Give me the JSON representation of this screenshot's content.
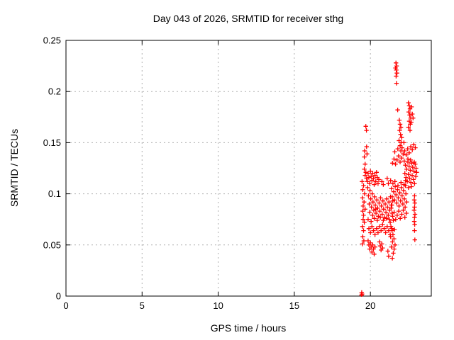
{
  "window": {
    "background": "#ffffff"
  },
  "chart_data": {
    "type": "scatter",
    "title": "Day 043 of 2026, SRMTID for receiver sthg",
    "xlabel": "GPS time / hours",
    "ylabel": "SRMTID / TECUs",
    "xlim": [
      0,
      24
    ],
    "ylim": [
      0,
      0.25
    ],
    "xticks": [
      0,
      5,
      10,
      15,
      20
    ],
    "xtick_labels": [
      "0",
      "5",
      "10",
      "15",
      "20"
    ],
    "yticks": [
      0,
      0.05,
      0.1,
      0.15,
      0.2,
      0.25
    ],
    "ytick_labels": [
      "0",
      "0.05",
      "0.1",
      "0.15",
      "0.2",
      "0.25"
    ],
    "grid": true,
    "legend": "none",
    "marker": "plus",
    "marker_color": "#ff0000",
    "grid_color": "#b0b0b0",
    "axis_color": "#000000",
    "series": [
      {
        "name": "SRMTID",
        "points": [
          [
            19.42,
            0.001
          ],
          [
            19.45,
            0.002
          ],
          [
            19.43,
            0.0035
          ],
          [
            19.7,
            0.166
          ],
          [
            19.74,
            0.162
          ],
          [
            19.75,
            0.146
          ],
          [
            19.62,
            0.142
          ],
          [
            19.78,
            0.139
          ],
          [
            19.6,
            0.136
          ],
          [
            19.65,
            0.129
          ],
          [
            19.45,
            0.112
          ],
          [
            19.55,
            0.108
          ],
          [
            19.5,
            0.104
          ],
          [
            19.62,
            0.1
          ],
          [
            19.48,
            0.096
          ],
          [
            19.58,
            0.092
          ],
          [
            19.52,
            0.088
          ],
          [
            19.65,
            0.085
          ],
          [
            19.5,
            0.083
          ],
          [
            19.55,
            0.079
          ],
          [
            19.52,
            0.075
          ],
          [
            19.6,
            0.072
          ],
          [
            19.48,
            0.068
          ],
          [
            19.55,
            0.064
          ],
          [
            19.5,
            0.058
          ],
          [
            19.57,
            0.054
          ],
          [
            19.47,
            0.051
          ],
          [
            19.6,
            0.124
          ],
          [
            19.7,
            0.121
          ],
          [
            19.65,
            0.118
          ],
          [
            19.75,
            0.115
          ],
          [
            19.8,
            0.112
          ],
          [
            19.85,
            0.12
          ],
          [
            19.9,
            0.116
          ],
          [
            19.95,
            0.11
          ],
          [
            20.0,
            0.122
          ],
          [
            20.05,
            0.117
          ],
          [
            20.1,
            0.113
          ],
          [
            20.15,
            0.12
          ],
          [
            20.2,
            0.115
          ],
          [
            20.25,
            0.109
          ],
          [
            20.3,
            0.118
          ],
          [
            20.35,
            0.112
          ],
          [
            20.4,
            0.121
          ],
          [
            20.45,
            0.116
          ],
          [
            20.5,
            0.11
          ],
          [
            20.55,
            0.114
          ],
          [
            20.75,
            0.112
          ],
          [
            20.85,
            0.109
          ],
          [
            21.1,
            0.115
          ],
          [
            21.18,
            0.11
          ],
          [
            19.82,
            0.106
          ],
          [
            19.87,
            0.098
          ],
          [
            19.92,
            0.09
          ],
          [
            19.97,
            0.103
          ],
          [
            20.02,
            0.095
          ],
          [
            20.07,
            0.087
          ],
          [
            20.12,
            0.1
          ],
          [
            20.17,
            0.092
          ],
          [
            20.22,
            0.084
          ],
          [
            20.27,
            0.097
          ],
          [
            20.32,
            0.089
          ],
          [
            20.37,
            0.081
          ],
          [
            20.42,
            0.094
          ],
          [
            20.47,
            0.086
          ],
          [
            20.52,
            0.078
          ],
          [
            20.57,
            0.091
          ],
          [
            20.62,
            0.083
          ],
          [
            20.67,
            0.096
          ],
          [
            20.72,
            0.088
          ],
          [
            20.77,
            0.08
          ],
          [
            20.82,
            0.093
          ],
          [
            20.87,
            0.085
          ],
          [
            20.92,
            0.077
          ],
          [
            20.97,
            0.09
          ],
          [
            21.02,
            0.082
          ],
          [
            21.07,
            0.095
          ],
          [
            21.12,
            0.087
          ],
          [
            21.17,
            0.079
          ],
          [
            21.22,
            0.092
          ],
          [
            21.27,
            0.084
          ],
          [
            21.32,
            0.097
          ],
          [
            21.37,
            0.089
          ],
          [
            21.42,
            0.081
          ],
          [
            21.47,
            0.093
          ],
          [
            19.85,
            0.075
          ],
          [
            20.05,
            0.073
          ],
          [
            20.25,
            0.076
          ],
          [
            20.45,
            0.074
          ],
          [
            20.65,
            0.077
          ],
          [
            20.85,
            0.074
          ],
          [
            21.05,
            0.076
          ],
          [
            21.25,
            0.075
          ],
          [
            19.95,
            0.082
          ],
          [
            20.15,
            0.079
          ],
          [
            20.35,
            0.085
          ],
          [
            19.9,
            0.066
          ],
          [
            20.0,
            0.062
          ],
          [
            20.1,
            0.068
          ],
          [
            20.2,
            0.064
          ],
          [
            20.3,
            0.06
          ],
          [
            20.4,
            0.066
          ],
          [
            20.5,
            0.062
          ],
          [
            20.6,
            0.068
          ],
          [
            20.7,
            0.064
          ],
          [
            20.8,
            0.07
          ],
          [
            20.9,
            0.066
          ],
          [
            21.0,
            0.062
          ],
          [
            21.1,
            0.068
          ],
          [
            21.2,
            0.064
          ],
          [
            21.3,
            0.06
          ],
          [
            21.4,
            0.066
          ],
          [
            19.85,
            0.054
          ],
          [
            19.9,
            0.05
          ],
          [
            19.95,
            0.046
          ],
          [
            20.0,
            0.052
          ],
          [
            20.05,
            0.048
          ],
          [
            20.1,
            0.043
          ],
          [
            20.15,
            0.05
          ],
          [
            20.2,
            0.046
          ],
          [
            20.25,
            0.041
          ],
          [
            20.3,
            0.048
          ],
          [
            20.6,
            0.053
          ],
          [
            20.65,
            0.049
          ],
          [
            20.7,
            0.045
          ],
          [
            20.75,
            0.051
          ],
          [
            20.8,
            0.047
          ],
          [
            21.15,
            0.044
          ],
          [
            21.2,
            0.039
          ],
          [
            21.3,
            0.072
          ],
          [
            21.35,
            0.068
          ],
          [
            21.42,
            0.064
          ],
          [
            21.48,
            0.06
          ],
          [
            21.55,
            0.056
          ],
          [
            21.62,
            0.05
          ],
          [
            21.33,
            0.058
          ],
          [
            21.58,
            0.065
          ],
          [
            21.45,
            0.053
          ],
          [
            21.38,
            0.048
          ],
          [
            21.5,
            0.042
          ],
          [
            21.44,
            0.037
          ],
          [
            21.56,
            0.046
          ],
          [
            21.68,
            0.228
          ],
          [
            21.72,
            0.225
          ],
          [
            21.65,
            0.223
          ],
          [
            21.7,
            0.221
          ],
          [
            21.74,
            0.218
          ],
          [
            21.69,
            0.215
          ],
          [
            21.71,
            0.208
          ],
          [
            21.79,
            0.182
          ],
          [
            21.9,
            0.172
          ],
          [
            21.95,
            0.168
          ],
          [
            22.0,
            0.165
          ],
          [
            21.92,
            0.162
          ],
          [
            21.98,
            0.158
          ],
          [
            22.05,
            0.155
          ],
          [
            21.88,
            0.152
          ],
          [
            22.02,
            0.15
          ],
          [
            21.95,
            0.147
          ],
          [
            22.08,
            0.145
          ],
          [
            22.5,
            0.189
          ],
          [
            22.55,
            0.186
          ],
          [
            22.6,
            0.183
          ],
          [
            22.52,
            0.18
          ],
          [
            22.58,
            0.177
          ],
          [
            22.65,
            0.174
          ],
          [
            22.55,
            0.171
          ],
          [
            22.62,
            0.168
          ],
          [
            22.5,
            0.165
          ],
          [
            22.6,
            0.162
          ],
          [
            22.7,
            0.185
          ],
          [
            22.75,
            0.178
          ],
          [
            22.68,
            0.17
          ],
          [
            22.8,
            0.174
          ],
          [
            21.45,
            0.13
          ],
          [
            21.55,
            0.134
          ],
          [
            21.65,
            0.129
          ],
          [
            21.75,
            0.133
          ],
          [
            21.85,
            0.137
          ],
          [
            21.95,
            0.131
          ],
          [
            22.05,
            0.135
          ],
          [
            22.15,
            0.139
          ],
          [
            22.25,
            0.142
          ],
          [
            22.35,
            0.138
          ],
          [
            22.45,
            0.144
          ],
          [
            22.55,
            0.14
          ],
          [
            22.65,
            0.146
          ],
          [
            22.75,
            0.143
          ],
          [
            22.85,
            0.148
          ],
          [
            22.95,
            0.145
          ],
          [
            21.6,
            0.141
          ],
          [
            21.8,
            0.144
          ],
          [
            22.0,
            0.142
          ],
          [
            22.2,
            0.15
          ],
          [
            21.33,
            0.113
          ],
          [
            21.38,
            0.105
          ],
          [
            21.43,
            0.097
          ],
          [
            21.48,
            0.11
          ],
          [
            21.53,
            0.102
          ],
          [
            21.58,
            0.094
          ],
          [
            21.63,
            0.107
          ],
          [
            21.68,
            0.099
          ],
          [
            21.73,
            0.091
          ],
          [
            21.78,
            0.104
          ],
          [
            21.83,
            0.096
          ],
          [
            21.88,
            0.088
          ],
          [
            21.93,
            0.101
          ],
          [
            21.98,
            0.093
          ],
          [
            22.03,
            0.106
          ],
          [
            22.08,
            0.098
          ],
          [
            22.13,
            0.09
          ],
          [
            22.18,
            0.103
          ],
          [
            22.23,
            0.095
          ],
          [
            22.28,
            0.087
          ],
          [
            22.33,
            0.1
          ],
          [
            22.38,
            0.092
          ],
          [
            21.36,
            0.086
          ],
          [
            21.46,
            0.078
          ],
          [
            21.56,
            0.082
          ],
          [
            21.66,
            0.075
          ],
          [
            21.76,
            0.079
          ],
          [
            21.86,
            0.083
          ],
          [
            21.96,
            0.076
          ],
          [
            22.06,
            0.08
          ],
          [
            22.16,
            0.084
          ],
          [
            22.26,
            0.077
          ],
          [
            22.36,
            0.081
          ],
          [
            21.41,
            0.089
          ],
          [
            21.61,
            0.112
          ],
          [
            21.81,
            0.108
          ],
          [
            22.01,
            0.111
          ],
          [
            22.21,
            0.109
          ],
          [
            22.31,
            0.113
          ],
          [
            21.51,
            0.074
          ],
          [
            22.22,
            0.132
          ],
          [
            22.3,
            0.128
          ],
          [
            22.38,
            0.124
          ],
          [
            22.46,
            0.131
          ],
          [
            22.54,
            0.127
          ],
          [
            22.62,
            0.123
          ],
          [
            22.7,
            0.13
          ],
          [
            22.78,
            0.126
          ],
          [
            22.86,
            0.122
          ],
          [
            22.94,
            0.129
          ],
          [
            23.0,
            0.125
          ],
          [
            22.26,
            0.12
          ],
          [
            22.34,
            0.116
          ],
          [
            22.42,
            0.112
          ],
          [
            22.5,
            0.119
          ],
          [
            22.58,
            0.115
          ],
          [
            22.66,
            0.111
          ],
          [
            22.74,
            0.118
          ],
          [
            22.82,
            0.114
          ],
          [
            22.9,
            0.11
          ],
          [
            22.98,
            0.117
          ],
          [
            23.04,
            0.121
          ],
          [
            22.3,
            0.108
          ],
          [
            22.5,
            0.106
          ],
          [
            22.7,
            0.107
          ],
          [
            22.46,
            0.134
          ],
          [
            22.64,
            0.133
          ],
          [
            22.88,
            0.131
          ],
          [
            22.9,
            0.098
          ],
          [
            22.88,
            0.094
          ],
          [
            22.92,
            0.091
          ],
          [
            22.9,
            0.087
          ],
          [
            22.87,
            0.084
          ],
          [
            22.93,
            0.08
          ],
          [
            22.9,
            0.077
          ],
          [
            22.88,
            0.073
          ],
          [
            22.91,
            0.07
          ],
          [
            22.9,
            0.064
          ],
          [
            22.92,
            0.055
          ]
        ]
      }
    ]
  }
}
